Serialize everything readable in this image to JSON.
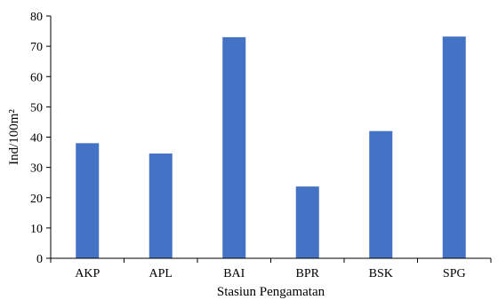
{
  "chart_data": {
    "type": "bar",
    "categories": [
      "AKP",
      "APL",
      "BAI",
      "BPR",
      "BSK",
      "SPG"
    ],
    "values": [
      38,
      34.6,
      73,
      23.7,
      42,
      73.2
    ],
    "xlabel": "Stasiun Pengamatan",
    "ylabel": "Ind/100m²",
    "ylim": [
      0,
      80
    ],
    "yticks": [
      0,
      10,
      20,
      30,
      40,
      50,
      60,
      70,
      80
    ],
    "grid": false,
    "bar_color": "#4472C4",
    "axis_color": "#000000"
  }
}
